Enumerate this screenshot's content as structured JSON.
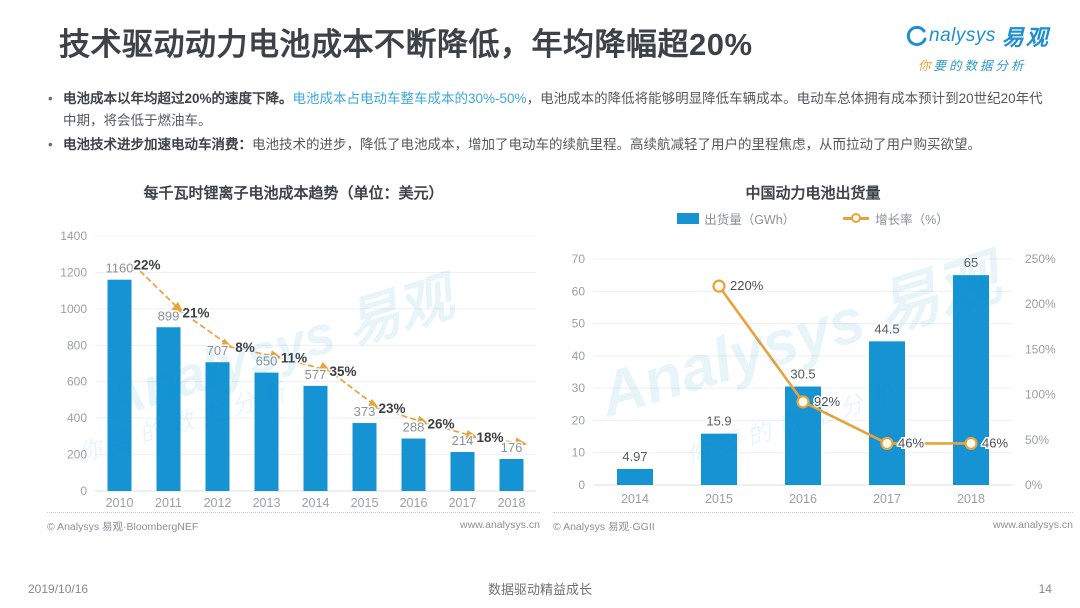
{
  "header": {
    "title": "技术驱动动力电池成本不断降低，年均降幅超20%",
    "logo": {
      "brand_en": "nalysys",
      "brand_cn": "易观",
      "tagline_accent": "你",
      "tagline_rest": "要的数据分析"
    }
  },
  "bullets": [
    {
      "bold": "电池成本以年均超过20%的速度下降。",
      "highlight": "电池成本占电动车整车成本的30%-50%",
      "rest": "，电池成本的降低将能够明显降低车辆成本。电动车总体拥有成本预计到20世纪20年代中期，将会低于燃油车。"
    },
    {
      "bold": "电池技术进步加速电动车消费：",
      "highlight": "",
      "rest": "电池技术的进步，降低了电池成本，增加了电动车的续航里程。高续航减轻了用户的里程焦虑，从而拉动了用户购买欲望。"
    }
  ],
  "watermark": {
    "line1": "Analysys 易观",
    "line2": "你要的数据分析"
  },
  "chart_data": [
    {
      "type": "bar",
      "title": "每千瓦时锂离子电池成本趋势（单位：美元）",
      "categories": [
        "2010",
        "2011",
        "2012",
        "2013",
        "2014",
        "2015",
        "2016",
        "2017",
        "2018"
      ],
      "values": [
        1160,
        899,
        707,
        650,
        577,
        373,
        288,
        214,
        176
      ],
      "decline_labels": [
        "22%",
        "21%",
        "8%",
        "11%",
        "35%",
        "23%",
        "26%",
        "18%"
      ],
      "ylim": [
        0,
        1400
      ],
      "ytick_step": 200,
      "grid": true,
      "legend_position": "none",
      "bar_color": "#1593D3",
      "trend_color": "#E8A33D",
      "source": "© Analysys 易观·BloombergNEF",
      "site": "www.analysys.cn"
    },
    {
      "type": "bar+line",
      "title": "中国动力电池出货量",
      "categories": [
        "2014",
        "2015",
        "2016",
        "2017",
        "2018"
      ],
      "series": [
        {
          "name": "出货量（GWh）",
          "type": "bar",
          "axis": "left",
          "values": [
            4.97,
            15.9,
            30.5,
            44.5,
            65
          ],
          "labels": [
            "4.97",
            "15.9",
            "30.5",
            "44.5",
            "65"
          ],
          "color": "#1593D3"
        },
        {
          "name": "增长率（%）",
          "type": "line",
          "axis": "right",
          "values": [
            null,
            220,
            92,
            46,
            46
          ],
          "labels": [
            "",
            "220%",
            "92%",
            "46%",
            "46%"
          ],
          "color": "#E8A33D"
        }
      ],
      "ylim_left": [
        0,
        70
      ],
      "ytick_step_left": 10,
      "ylim_right": [
        0,
        250
      ],
      "ytick_step_right": 50,
      "right_suffix": "%",
      "grid": true,
      "legend_position": "top",
      "source": "© Analysys 易观·GGII",
      "site": "www.analysys.cn"
    }
  ],
  "footer": {
    "date": "2019/10/16",
    "slogan": "数据驱动精益成长",
    "page": "14"
  }
}
